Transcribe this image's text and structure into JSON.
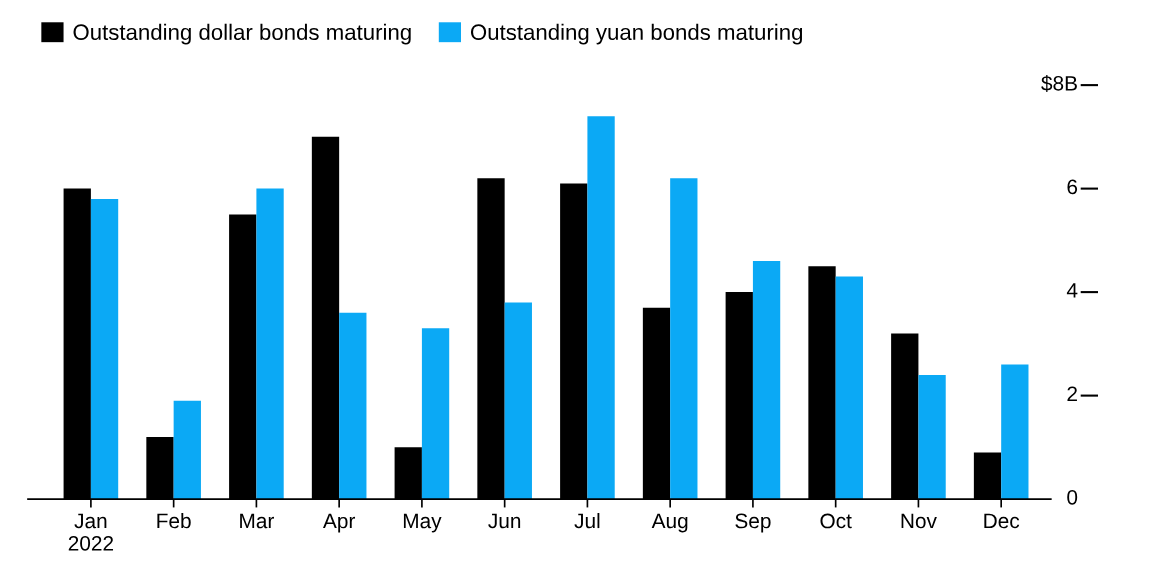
{
  "chart_data": {
    "type": "bar",
    "categories": [
      "Jan\n2022",
      "Feb",
      "Mar",
      "Apr",
      "May",
      "Jun",
      "Jul",
      "Aug",
      "Sep",
      "Oct",
      "Nov",
      "Dec"
    ],
    "series": [
      {
        "name": "Outstanding dollar bonds maturing",
        "color": "#000000",
        "values": [
          6.0,
          1.2,
          5.5,
          7.0,
          1.0,
          6.2,
          6.1,
          3.7,
          4.0,
          4.5,
          3.2,
          0.9
        ]
      },
      {
        "name": "Outstanding yuan bonds maturing",
        "color": "#0ba9f5",
        "values": [
          5.8,
          1.9,
          6.0,
          3.6,
          3.3,
          3.8,
          7.4,
          6.2,
          4.6,
          4.3,
          2.4,
          2.6
        ]
      }
    ],
    "ylim": [
      0,
      8
    ],
    "yticks": [
      0,
      2,
      4,
      6,
      {
        "value": 8,
        "label": "$8B"
      }
    ],
    "grid": false,
    "legend": "top left"
  }
}
